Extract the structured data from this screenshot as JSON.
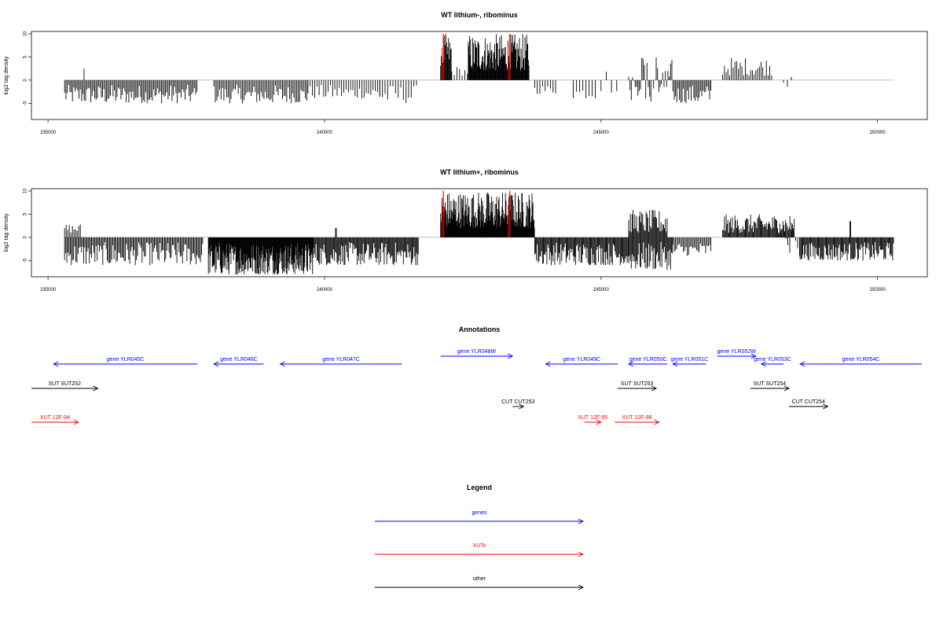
{
  "chart_data": [
    {
      "type": "bar",
      "title": "WT lithium-, ribominus",
      "ylabel": "log2 tag density",
      "xlim": [
        234700,
        250900
      ],
      "ylim": [
        -8.5,
        10.5
      ],
      "xticks": [
        235000,
        240000,
        245000,
        250000
      ],
      "yticks": [
        -5,
        0,
        5,
        10
      ],
      "baseline_range": [
        235300,
        250300
      ],
      "highlight_positions": [
        242150,
        243350
      ],
      "segments": [
        {
          "start": 235300,
          "end": 237700,
          "density": 0.6,
          "min": -5,
          "max": -1,
          "sign": "neg"
        },
        {
          "start": 235650,
          "end": 235660,
          "density": 1,
          "min": 2.5,
          "max": 2.5,
          "sign": "pos"
        },
        {
          "start": 238000,
          "end": 239700,
          "density": 0.55,
          "min": -5,
          "max": -1,
          "sign": "neg"
        },
        {
          "start": 239700,
          "end": 241000,
          "density": 0.35,
          "min": -4,
          "max": -1,
          "sign": "neg"
        },
        {
          "start": 241000,
          "end": 241700,
          "density": 0.3,
          "min": -5,
          "max": -1,
          "sign": "neg"
        },
        {
          "start": 242100,
          "end": 242300,
          "density": 1.2,
          "min": 3,
          "max": 10,
          "sign": "pos"
        },
        {
          "start": 242300,
          "end": 242600,
          "density": 0.3,
          "min": 1,
          "max": 3,
          "sign": "pos"
        },
        {
          "start": 242600,
          "end": 243700,
          "density": 1.4,
          "min": 2,
          "max": 10,
          "sign": "pos"
        },
        {
          "start": 243800,
          "end": 244200,
          "density": 0.3,
          "min": -3,
          "max": -1,
          "sign": "neg"
        },
        {
          "start": 244500,
          "end": 244900,
          "density": 0.25,
          "min": -4,
          "max": -1,
          "sign": "neg"
        },
        {
          "start": 245000,
          "end": 245300,
          "density": 0.15,
          "min": -3,
          "max": 3,
          "sign": "mix"
        },
        {
          "start": 245500,
          "end": 246300,
          "density": 0.6,
          "min": -5,
          "max": 4,
          "sign": "mix"
        },
        {
          "start": 246300,
          "end": 247000,
          "density": 0.6,
          "min": -5,
          "max": -1,
          "sign": "neg"
        },
        {
          "start": 247200,
          "end": 248100,
          "density": 0.45,
          "min": 1,
          "max": 5,
          "sign": "pos"
        },
        {
          "start": 248300,
          "end": 248500,
          "density": 0.2,
          "min": -1.5,
          "max": 2,
          "sign": "mix"
        }
      ]
    },
    {
      "type": "bar",
      "title": "WT lithium+, ribominus",
      "ylabel": "log2 tag density",
      "xlim": [
        234700,
        250900
      ],
      "ylim": [
        -8.5,
        10.5
      ],
      "xticks": [
        235000,
        240000,
        245000,
        250000
      ],
      "yticks": [
        -5,
        0,
        5,
        10
      ],
      "baseline_range": [
        235300,
        250300
      ],
      "highlight_positions": [
        242150,
        243350
      ],
      "segments": [
        {
          "start": 235300,
          "end": 235600,
          "density": 0.5,
          "min": 1,
          "max": 3,
          "sign": "pos"
        },
        {
          "start": 235300,
          "end": 237800,
          "density": 0.7,
          "min": -6,
          "max": -1,
          "sign": "neg"
        },
        {
          "start": 237900,
          "end": 239800,
          "density": 1.6,
          "min": -8,
          "max": -1,
          "sign": "neg"
        },
        {
          "start": 239800,
          "end": 241700,
          "density": 0.9,
          "min": -6,
          "max": -1,
          "sign": "neg"
        },
        {
          "start": 240200,
          "end": 240220,
          "density": 1,
          "min": 2,
          "max": 2,
          "sign": "pos"
        },
        {
          "start": 242100,
          "end": 243800,
          "density": 1.6,
          "min": 2,
          "max": 10,
          "sign": "pos"
        },
        {
          "start": 243800,
          "end": 245500,
          "density": 0.9,
          "min": -6,
          "max": -1,
          "sign": "neg"
        },
        {
          "start": 245500,
          "end": 246200,
          "density": 0.9,
          "min": 1,
          "max": 6,
          "sign": "pos"
        },
        {
          "start": 245500,
          "end": 246300,
          "density": 0.9,
          "min": -7,
          "max": -1,
          "sign": "neg"
        },
        {
          "start": 246300,
          "end": 247000,
          "density": 0.6,
          "min": -4,
          "max": -1,
          "sign": "neg"
        },
        {
          "start": 247200,
          "end": 248500,
          "density": 0.9,
          "min": 1,
          "max": 5,
          "sign": "pos"
        },
        {
          "start": 248200,
          "end": 248600,
          "density": 0.4,
          "min": -3,
          "max": 6,
          "sign": "mix"
        },
        {
          "start": 248600,
          "end": 250300,
          "density": 0.9,
          "min": -5,
          "max": -1,
          "sign": "neg"
        },
        {
          "start": 249500,
          "end": 249520,
          "density": 1,
          "min": 3.5,
          "max": 3.5,
          "sign": "pos"
        }
      ]
    }
  ],
  "annotations": {
    "title": "Annotations",
    "items": [
      {
        "label": "gene YLR045C",
        "kind": "gene",
        "strand": "-",
        "start": 235100,
        "end": 237700,
        "row": 0
      },
      {
        "label": "gene YLR046C",
        "kind": "gene",
        "strand": "-",
        "start": 238000,
        "end": 238900,
        "row": 0
      },
      {
        "label": "gene YLR047C",
        "kind": "gene",
        "strand": "-",
        "start": 239200,
        "end": 241400,
        "row": 0
      },
      {
        "label": "gene YLR048W",
        "kind": "gene",
        "strand": "+",
        "start": 242100,
        "end": 243400,
        "row": -1
      },
      {
        "label": "gene YLR049C",
        "kind": "gene",
        "strand": "-",
        "start": 244000,
        "end": 245300,
        "row": 0
      },
      {
        "label": "gene YLR050C",
        "kind": "gene",
        "strand": "-",
        "start": 245500,
        "end": 246200,
        "row": 0
      },
      {
        "label": "gene YLR051C",
        "kind": "gene",
        "strand": "-",
        "start": 246300,
        "end": 246900,
        "row": 0
      },
      {
        "label": "gene YLR052W",
        "kind": "gene",
        "strand": "+",
        "start": 247100,
        "end": 247800,
        "row": -1
      },
      {
        "label": "gene YLR053C",
        "kind": "gene",
        "strand": "-",
        "start": 247900,
        "end": 248300,
        "row": 0
      },
      {
        "label": "gene YLR054C",
        "kind": "gene",
        "strand": "-",
        "start": 248600,
        "end": 250800,
        "row": 0
      },
      {
        "label": "SUT SUT252",
        "kind": "other",
        "strand": "+",
        "start": 234700,
        "end": 235900,
        "row": 1
      },
      {
        "label": "SUT SUT253",
        "kind": "other",
        "strand": "+",
        "start": 245300,
        "end": 246000,
        "row": 1
      },
      {
        "label": "SUT SUT254",
        "kind": "other",
        "strand": "+",
        "start": 247700,
        "end": 248400,
        "row": 1
      },
      {
        "label": "CUT CUT253",
        "kind": "other",
        "strand": "+",
        "start": 243400,
        "end": 243600,
        "row": 2
      },
      {
        "label": "CUT CUT254",
        "kind": "other",
        "strand": "+",
        "start": 248400,
        "end": 249100,
        "row": 2
      },
      {
        "label": "XUT 12F-94",
        "kind": "xut",
        "strand": "+",
        "start": 234700,
        "end": 235550,
        "row": 3
      },
      {
        "label": "XUT 12F-95",
        "kind": "xut",
        "strand": "+",
        "start": 244700,
        "end": 245000,
        "row": 3
      },
      {
        "label": "XUT 12F-98",
        "kind": "xut",
        "strand": "+",
        "start": 245250,
        "end": 246050,
        "row": 3
      }
    ]
  },
  "legend": {
    "title": "Legend",
    "items": [
      {
        "label": "genes",
        "kind": "gene"
      },
      {
        "label": "XUTs",
        "kind": "xut"
      },
      {
        "label": "other",
        "kind": "other"
      }
    ]
  },
  "colors": {
    "gene": "#0000ff",
    "xut": "#ff0000",
    "other": "#000000",
    "highlight": "#ff0000",
    "baseline": "#aaaaaa"
  }
}
